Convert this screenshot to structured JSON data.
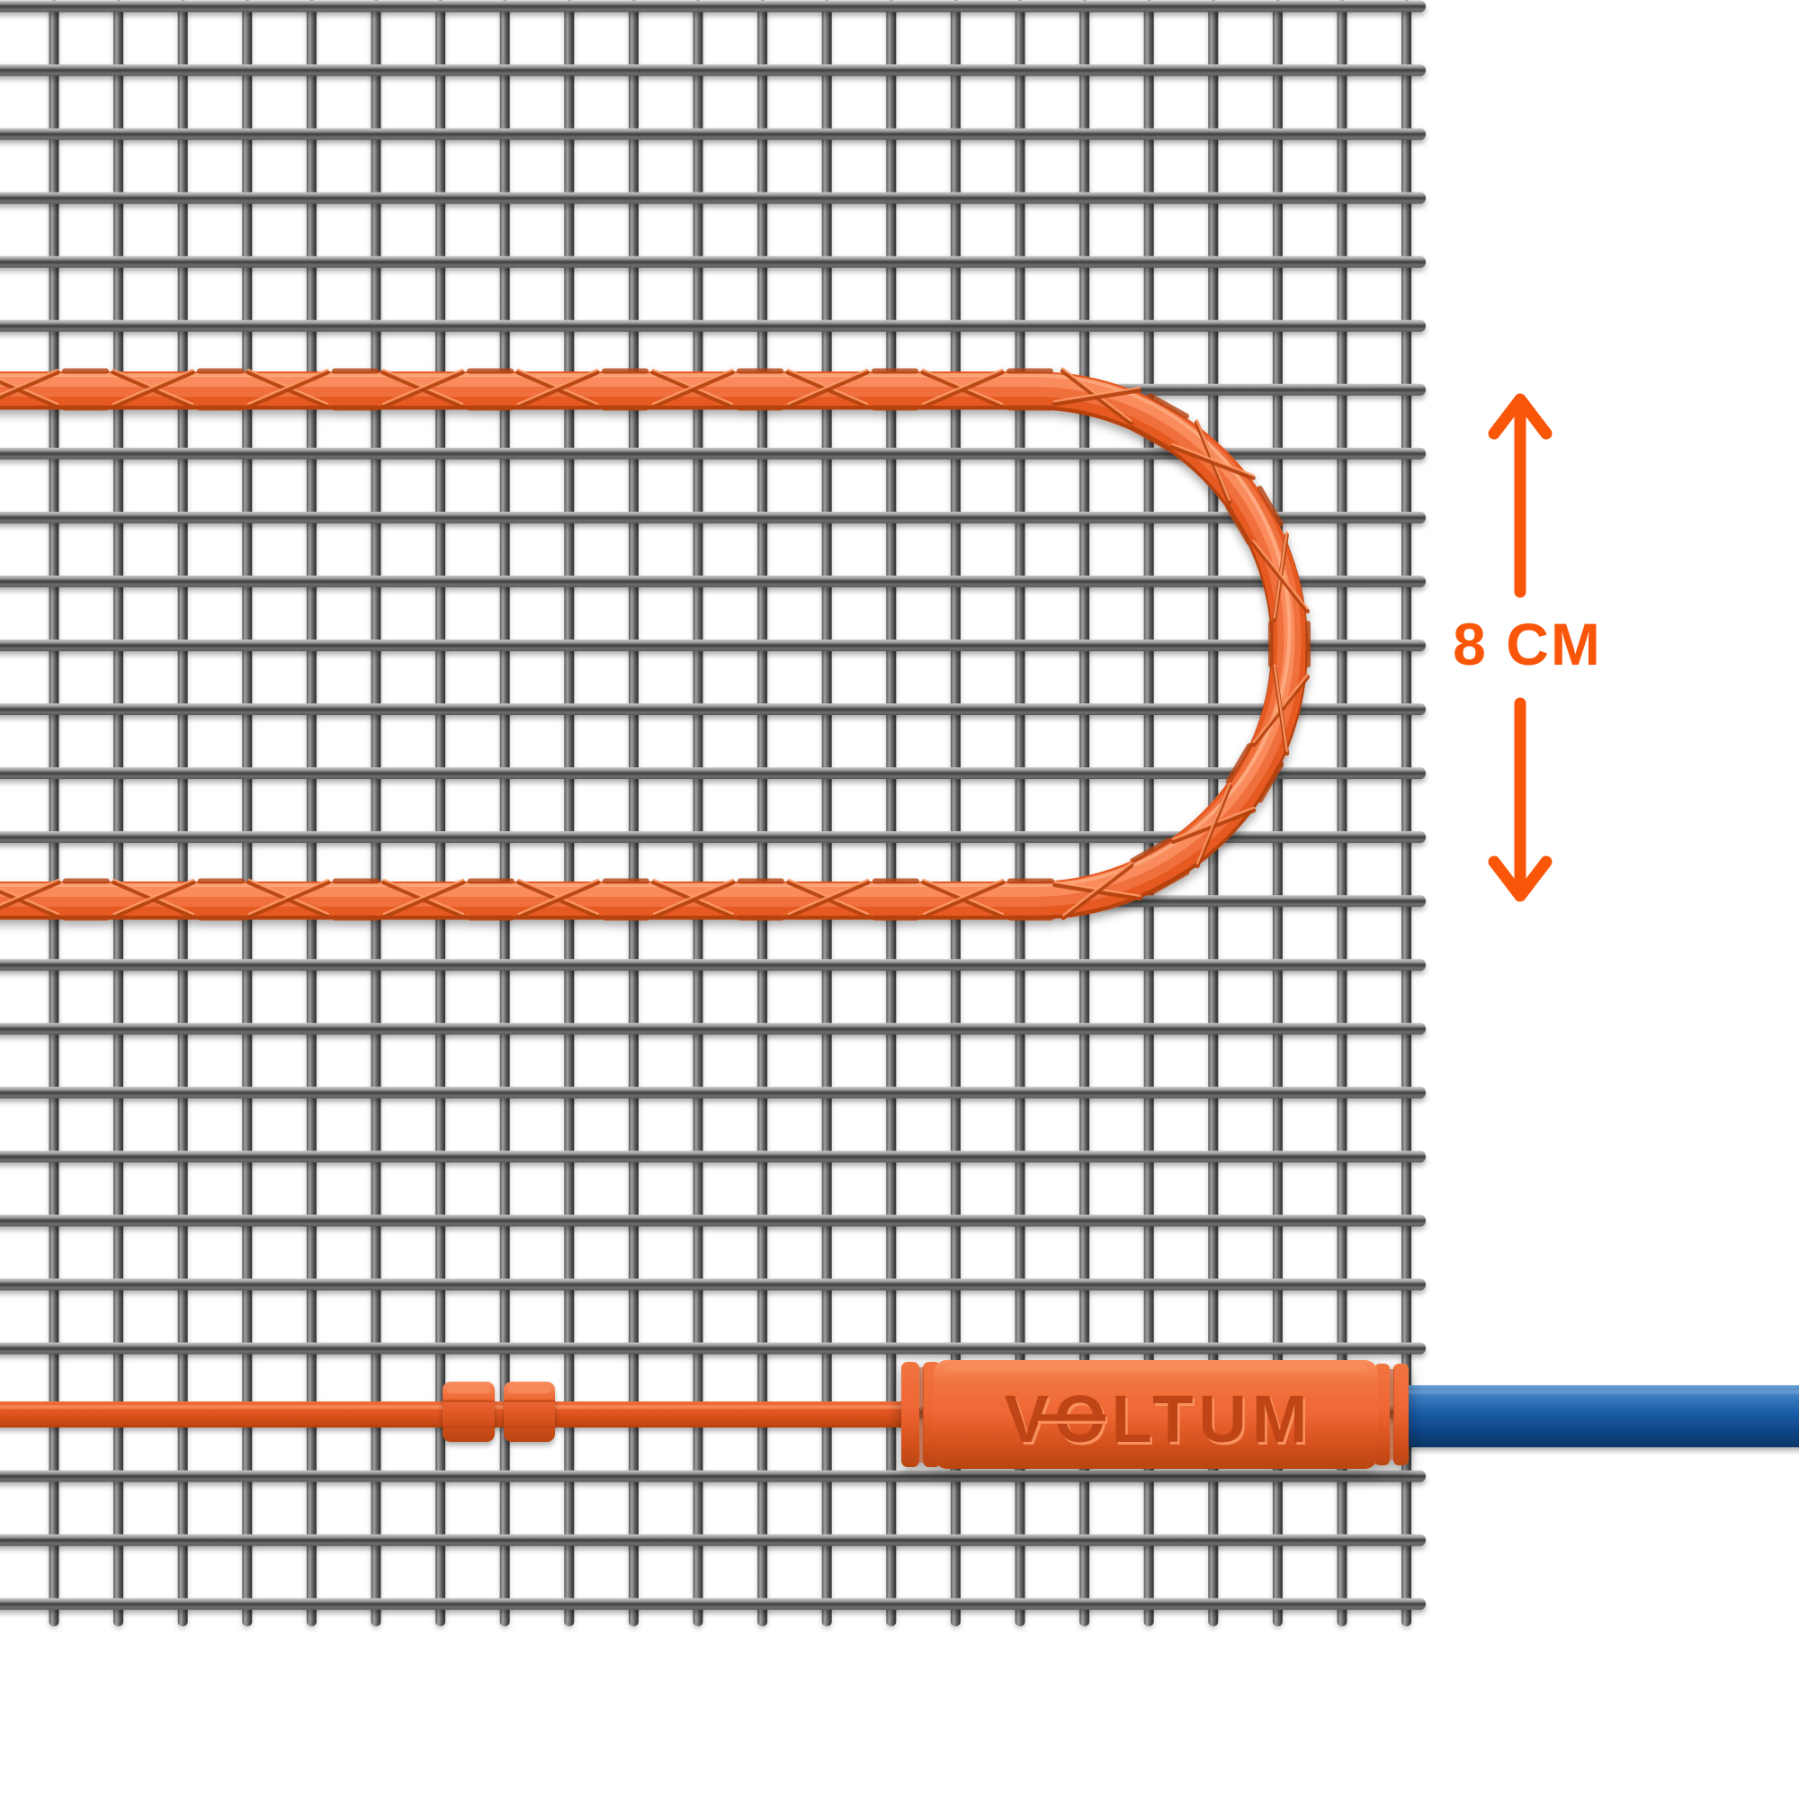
{
  "connector": {
    "brand": "VOLTUM"
  },
  "annotation": {
    "spacing_label": "8 CM",
    "value": "8",
    "unit": "CM"
  },
  "icons": {
    "arrow_up": "↑",
    "arrow_down": "↓"
  },
  "colors": {
    "background": "#ffffff",
    "accent": "#fa560a",
    "mesh_bright": "#c9c9c9",
    "mesh_light": "#a2a2a2",
    "mesh_mid": "#6f6f6f",
    "mesh_dark": "#3e3e3e",
    "mesh_edge": "#575757",
    "cable_top": "#ffb68e",
    "cable_hi": "#fa8e5e",
    "cable_mid": "#f0703c",
    "cable_base": "#e65a24",
    "cable_deep": "#d14d17",
    "cable_rim": "#b7420e",
    "cable_ridge": "#b5430f",
    "cable_ridge_light": "#ff9d6b",
    "connector_light": "#f88f5f",
    "connector_mid": "#f2743f",
    "connector_base": "#ee6633",
    "connector_deep": "#d24f1b",
    "connector_rim": "#b94510",
    "logo_ink": "#c04512",
    "logo_shadow": "#f9915f",
    "blue_hi": "#6ba0d4",
    "blue_light": "#4383c4",
    "blue_base": "#1a5ca7",
    "blue_deep": "#0f4484",
    "blue_rim": "#0b3767"
  }
}
